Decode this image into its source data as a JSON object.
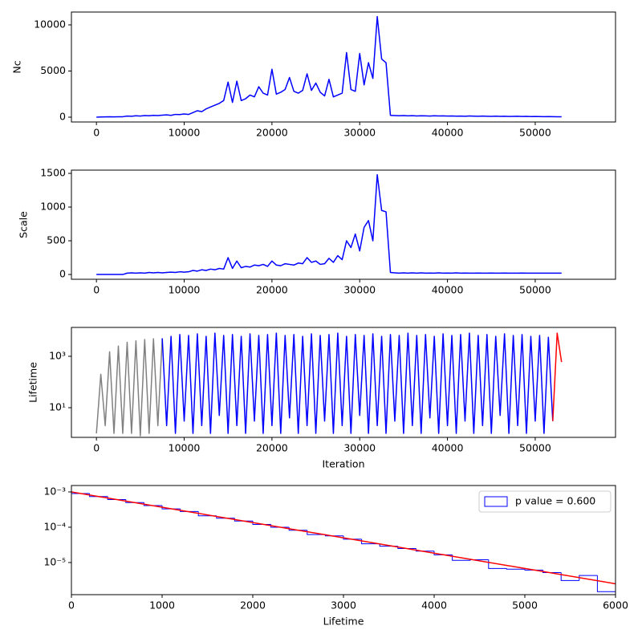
{
  "chart_data": [
    {
      "type": "line",
      "ylabel": "Nc",
      "color": "blue",
      "xlim": [
        -2850,
        59150
      ],
      "xticks": [
        0,
        10000,
        20000,
        30000,
        40000,
        50000
      ],
      "ylim": [
        -520,
        11390
      ],
      "yticks": [
        0,
        5000,
        10000
      ],
      "x": [
        0,
        500,
        1000,
        1500,
        2000,
        2500,
        3000,
        3500,
        4000,
        4500,
        5000,
        5500,
        6000,
        6500,
        7000,
        7500,
        8000,
        8500,
        9000,
        9500,
        10000,
        10500,
        11000,
        11500,
        12000,
        12500,
        13000,
        13500,
        14000,
        14500,
        15000,
        15500,
        16000,
        16500,
        17000,
        17500,
        18000,
        18500,
        19000,
        19500,
        20000,
        20500,
        21000,
        21500,
        22000,
        22500,
        23000,
        23500,
        24000,
        24500,
        25000,
        25500,
        26000,
        26500,
        27000,
        27500,
        28000,
        28500,
        29000,
        29500,
        30000,
        30500,
        31000,
        31500,
        32000,
        32500,
        33000,
        33500,
        34000,
        34500,
        35000,
        35500,
        36000,
        36500,
        37000,
        37500,
        38000,
        38500,
        39000,
        39500,
        40000,
        40500,
        41000,
        41500,
        42000,
        42500,
        43000,
        43500,
        44000,
        44500,
        45000,
        45500,
        46000,
        46500,
        47000,
        47500,
        48000,
        48500,
        49000,
        49500,
        50000,
        50500,
        51000,
        51500,
        52000,
        52500,
        53000
      ],
      "values": [
        0,
        20,
        30,
        40,
        30,
        40,
        50,
        120,
        100,
        150,
        120,
        180,
        150,
        200,
        180,
        220,
        250,
        200,
        300,
        280,
        350,
        300,
        500,
        700,
        600,
        900,
        1100,
        1300,
        1500,
        1800,
        3800,
        1600,
        3900,
        1800,
        2000,
        2400,
        2200,
        3300,
        2600,
        2400,
        5200,
        2500,
        2700,
        3000,
        4300,
        2800,
        2600,
        2900,
        4700,
        2900,
        3700,
        2700,
        2300,
        4100,
        2200,
        2400,
        2600,
        7000,
        3000,
        2800,
        6900,
        3500,
        5900,
        4200,
        10900,
        6300,
        5900,
        200,
        180,
        150,
        170,
        140,
        160,
        130,
        150,
        140,
        120,
        150,
        130,
        140,
        120,
        130,
        110,
        120,
        100,
        130,
        110,
        100,
        120,
        100,
        90,
        110,
        90,
        100,
        80,
        90,
        100,
        80,
        90,
        70,
        80,
        70,
        60,
        70,
        60,
        50,
        40
      ]
    },
    {
      "type": "line",
      "ylabel": "Scale",
      "color": "blue",
      "xlim": [
        -2850,
        59150
      ],
      "xticks": [
        0,
        10000,
        20000,
        30000,
        40000,
        50000
      ],
      "ylim": [
        -71,
        1548
      ],
      "yticks": [
        0,
        500,
        1000,
        1500
      ],
      "x": [
        0,
        500,
        1000,
        1500,
        2000,
        2500,
        3000,
        3500,
        4000,
        4500,
        5000,
        5500,
        6000,
        6500,
        7000,
        7500,
        8000,
        8500,
        9000,
        9500,
        10000,
        10500,
        11000,
        11500,
        12000,
        12500,
        13000,
        13500,
        14000,
        14500,
        15000,
        15500,
        16000,
        16500,
        17000,
        17500,
        18000,
        18500,
        19000,
        19500,
        20000,
        20500,
        21000,
        21500,
        22000,
        22500,
        23000,
        23500,
        24000,
        24500,
        25000,
        25500,
        26000,
        26500,
        27000,
        27500,
        28000,
        28500,
        29000,
        29500,
        30000,
        30500,
        31000,
        31500,
        32000,
        32500,
        33000,
        33500,
        34000,
        34500,
        35000,
        35500,
        36000,
        36500,
        37000,
        37500,
        38000,
        38500,
        39000,
        39500,
        40000,
        40500,
        41000,
        41500,
        42000,
        42500,
        43000,
        43500,
        44000,
        44500,
        45000,
        45500,
        46000,
        46500,
        47000,
        47500,
        48000,
        48500,
        49000,
        49500,
        50000,
        50500,
        51000,
        51500,
        52000,
        52500,
        53000
      ],
      "values": [
        0,
        0,
        0,
        0,
        0,
        0,
        0,
        20,
        25,
        20,
        25,
        20,
        30,
        25,
        30,
        25,
        30,
        35,
        30,
        40,
        35,
        40,
        60,
        50,
        70,
        60,
        80,
        70,
        90,
        80,
        250,
        90,
        200,
        100,
        120,
        110,
        140,
        130,
        150,
        120,
        200,
        140,
        130,
        160,
        150,
        140,
        170,
        160,
        250,
        180,
        200,
        150,
        160,
        240,
        180,
        280,
        220,
        500,
        400,
        600,
        350,
        700,
        800,
        500,
        1480,
        950,
        930,
        30,
        25,
        20,
        25,
        20,
        25,
        20,
        25,
        20,
        22,
        20,
        25,
        20,
        22,
        20,
        25,
        20,
        22,
        20,
        20,
        22,
        20,
        20,
        22,
        20,
        20,
        22,
        20,
        20,
        20,
        22,
        20,
        20,
        20,
        20,
        20,
        20,
        20,
        20,
        20
      ]
    },
    {
      "type": "line",
      "ylabel": "Lifetime",
      "xlabel": "Iteration",
      "log_y": true,
      "xlim": [
        -2850,
        59150
      ],
      "xticks": [
        0,
        10000,
        20000,
        30000,
        40000,
        50000
      ],
      "ylim": [
        0.7,
        13300
      ],
      "yticks": [
        {
          "value": 10,
          "label": "10¹"
        },
        {
          "value": 1000,
          "label": "10³"
        }
      ],
      "series": [
        {
          "color": "gray",
          "x": [
            0,
            500,
            1000,
            1500,
            2000,
            2500,
            3000,
            3500,
            4000,
            4500,
            5000,
            5500,
            6000,
            6500,
            7000,
            7500
          ],
          "values": [
            1,
            200,
            2,
            1500,
            1,
            2500,
            1,
            3500,
            1,
            4000,
            0.8,
            4500,
            1,
            4800,
            2,
            5000
          ]
        },
        {
          "color": "blue",
          "x": [
            7500,
            8000,
            8500,
            9000,
            9500,
            10000,
            10500,
            11000,
            11500,
            12000,
            12500,
            13000,
            13500,
            14000,
            14500,
            15000,
            15500,
            16000,
            16500,
            17000,
            17500,
            18000,
            18500,
            19000,
            19500,
            20000,
            20500,
            21000,
            21500,
            22000,
            22500,
            23000,
            23500,
            24000,
            24500,
            25000,
            25500,
            26000,
            26500,
            27000,
            27500,
            28000,
            28500,
            29000,
            29500,
            30000,
            30500,
            31000,
            31500,
            32000,
            32500,
            33000,
            33500,
            34000,
            34500,
            35000,
            35500,
            36000,
            36500,
            37000,
            37500,
            38000,
            38500,
            39000,
            39500,
            40000,
            40500,
            41000,
            41500,
            42000,
            42500,
            43000,
            43500,
            44000,
            44500,
            45000,
            45500,
            46000,
            46500,
            47000,
            47500,
            48000,
            48500,
            49000,
            49500,
            50000,
            50500,
            51000,
            51500,
            52000
          ],
          "values": [
            5000,
            2,
            6000,
            1,
            7000,
            3,
            6500,
            1,
            7500,
            2,
            6000,
            1,
            8000,
            5,
            6500,
            1,
            7000,
            2,
            6000,
            1,
            7500,
            3,
            6500,
            1,
            7000,
            2,
            8000,
            1,
            6500,
            4,
            7000,
            1,
            6000,
            2,
            7500,
            1,
            6500,
            3,
            7000,
            1,
            8000,
            2,
            6000,
            1,
            7000,
            5,
            6500,
            1,
            7500,
            2,
            6000,
            1,
            7000,
            3,
            6500,
            1,
            8000,
            2,
            6500,
            1,
            7000,
            4,
            6000,
            1,
            7500,
            2,
            6500,
            1,
            7000,
            3,
            8000,
            1,
            6500,
            2,
            7000,
            1,
            6000,
            5,
            7500,
            1,
            6500,
            2,
            7000,
            1,
            6000,
            3,
            6500,
            1,
            5500,
            3
          ]
        },
        {
          "color": "red",
          "x": [
            52000,
            52500,
            53000
          ],
          "values": [
            3,
            8000,
            600
          ]
        }
      ]
    },
    {
      "type": "histogram",
      "xlabel": "Lifetime",
      "log_y": true,
      "color": "blue",
      "name": "p value = 0.600",
      "legend": "upper right",
      "xlim": [
        0,
        6000
      ],
      "xticks": [
        0,
        1000,
        2000,
        3000,
        4000,
        5000,
        6000
      ],
      "ylim": [
        1.23e-06,
        0.00152
      ],
      "yticks": [
        {
          "value": 1e-05,
          "label": "10⁻⁵"
        },
        {
          "value": 0.0001,
          "label": "10⁻⁴"
        },
        {
          "value": 0.001,
          "label": "10⁻³"
        }
      ],
      "bins": [
        0,
        200,
        400,
        600,
        800,
        1000,
        1200,
        1400,
        1600,
        1800,
        2000,
        2200,
        2400,
        2600,
        2800,
        3000,
        3200,
        3400,
        3600,
        3800,
        4000,
        4200,
        4400,
        4600,
        4800,
        5000,
        5200,
        5400,
        5600,
        5800,
        6000
      ],
      "values": [
        0.0009,
        0.00074,
        0.00061,
        0.0005,
        0.00041,
        0.00033,
        0.00028,
        0.00021,
        0.00018,
        0.00015,
        0.00012,
        0.0001,
        8.2e-05,
        6.2e-05,
        5.7e-05,
        4.6e-05,
        3.4e-05,
        2.9e-05,
        2.5e-05,
        2.1e-05,
        1.65e-05,
        1.15e-05,
        1.2e-05,
        6.8e-06,
        6.5e-06,
        6.1e-06,
        5.2e-06,
        3.1e-06,
        4.3e-06,
        1.5e-06
      ],
      "fit_line": {
        "color": "red",
        "x": [
          0,
          6000
        ],
        "values": [
          0.001,
          2.5e-06
        ]
      }
    }
  ]
}
